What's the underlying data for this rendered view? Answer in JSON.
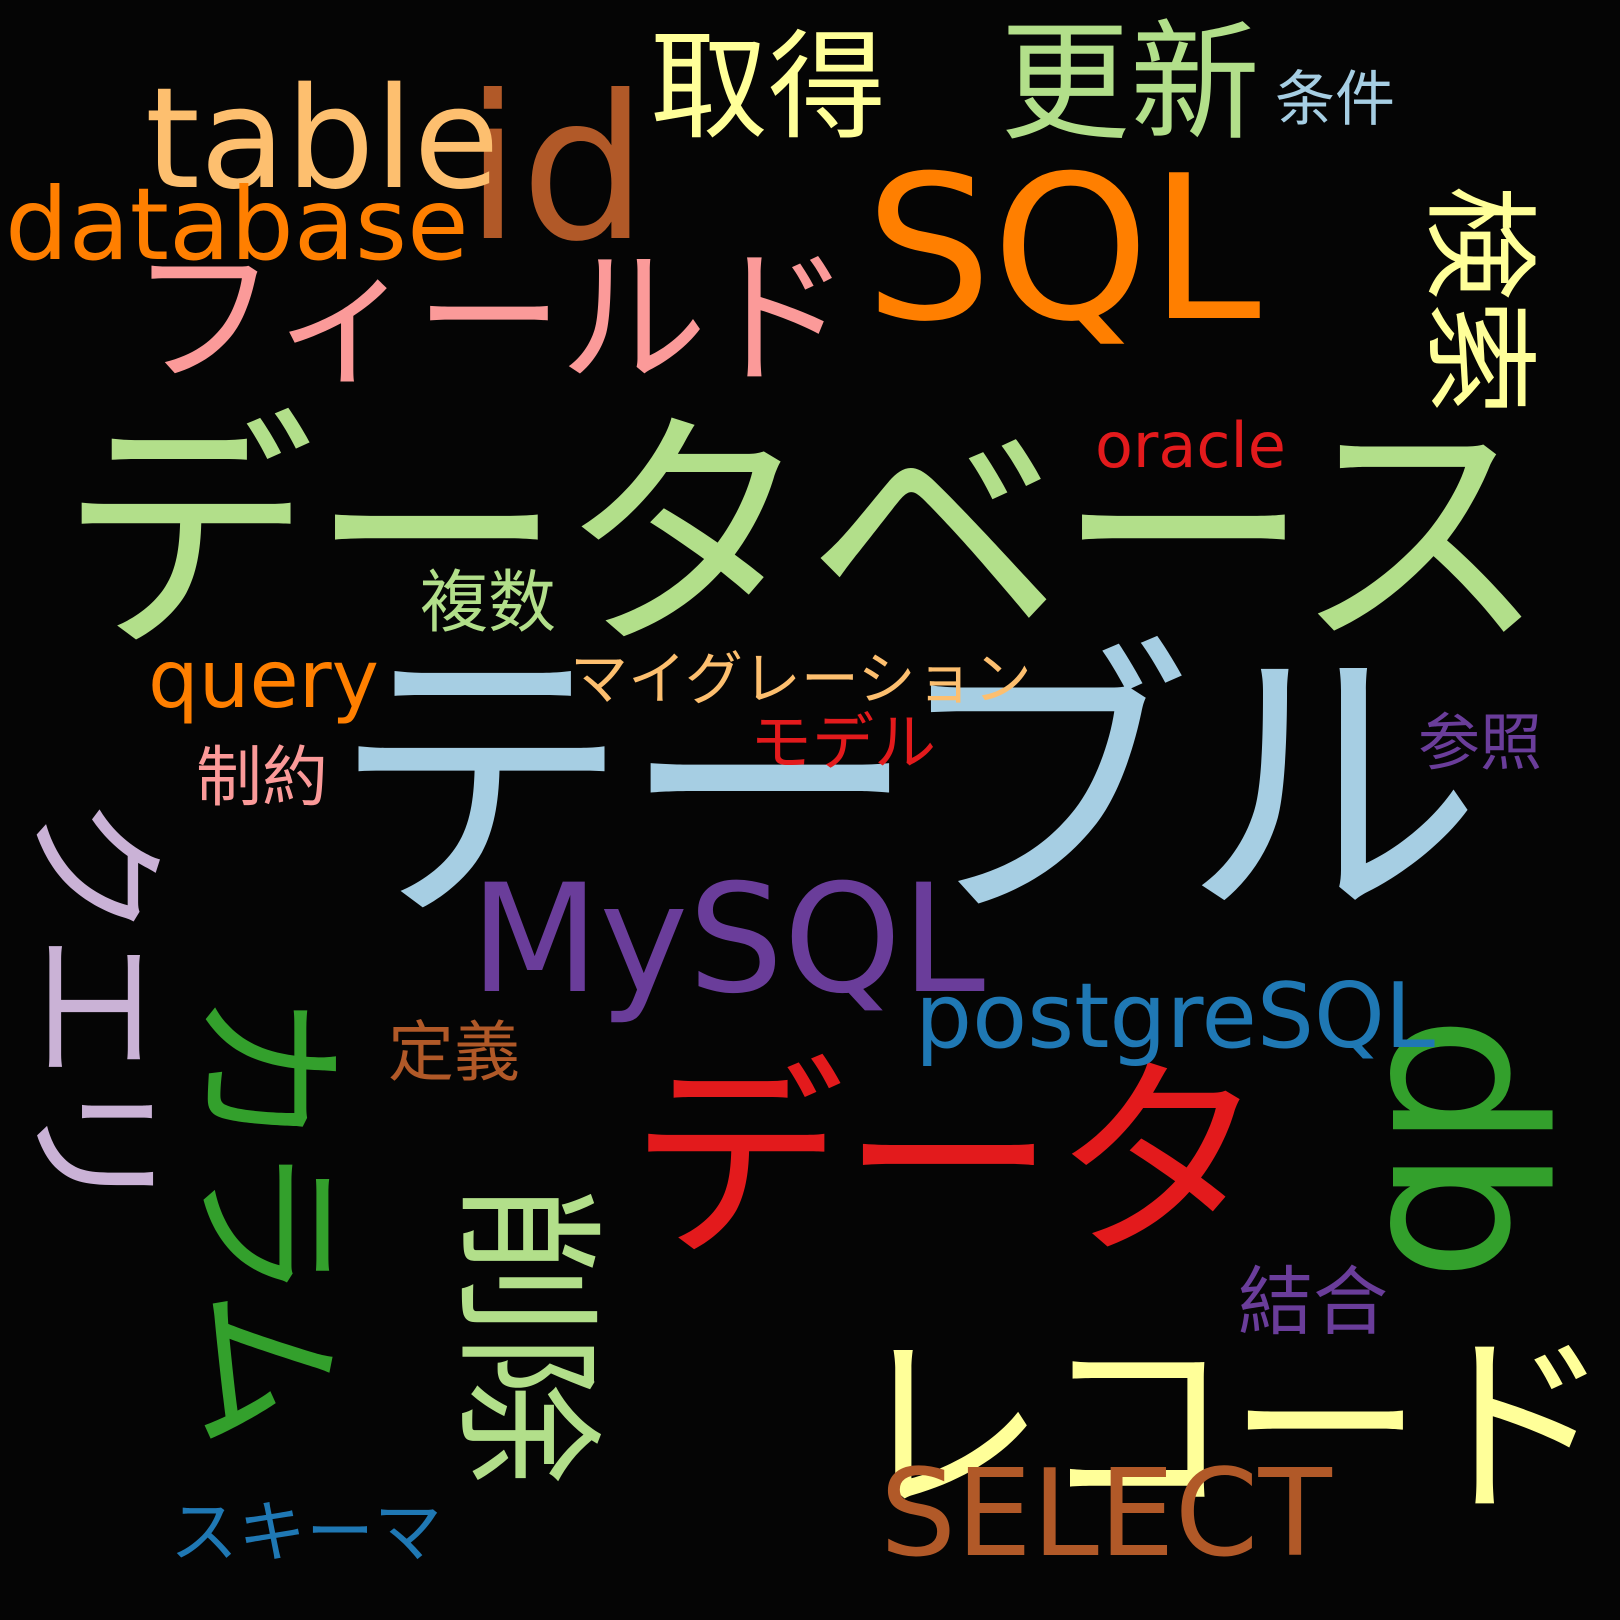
{
  "words": {
    "db_table": {
      "text": "データベース",
      "color": "#b2df8a"
    },
    "table": {
      "text": "テーブル",
      "color": "#a6cee3"
    },
    "sql": {
      "text": "SQL",
      "color": "#ff7f00"
    },
    "data": {
      "text": "データ",
      "color": "#e31a1c"
    },
    "record": {
      "text": "レコード",
      "color": "#ffff99"
    },
    "db": {
      "text": "db",
      "color": "#33a02c"
    },
    "field": {
      "text": "フィールド",
      "color": "#fb9a99"
    },
    "column": {
      "text": "カラム",
      "color": "#33a02c"
    },
    "query_jp": {
      "text": "クエリ",
      "color": "#cab2d6"
    },
    "delete": {
      "text": "削除",
      "color": "#b2df8a"
    },
    "search": {
      "text": "検索",
      "color": "#ffff99"
    },
    "id": {
      "text": "id",
      "color": "#b15928"
    },
    "mysql": {
      "text": "MySQL",
      "color": "#6a3d9a"
    },
    "table_en": {
      "text": "table",
      "color": "#fdbf6f"
    },
    "database": {
      "text": "database",
      "color": "#ff7f00"
    },
    "update": {
      "text": "更新",
      "color": "#b2df8a"
    },
    "get": {
      "text": "取得",
      "color": "#ffff99"
    },
    "postgresql": {
      "text": "postgreSQL",
      "color": "#1f78b4"
    },
    "select": {
      "text": "SELECT",
      "color": "#b15928"
    },
    "oracle": {
      "text": "oracle",
      "color": "#e31a1c"
    },
    "migration": {
      "text": "マイグレーション",
      "color": "#fdbf6f"
    },
    "query_en": {
      "text": "query",
      "color": "#ff7f00"
    },
    "multiple": {
      "text": "複数",
      "color": "#b2df8a"
    },
    "condition": {
      "text": "条件",
      "color": "#a6cee3"
    },
    "reference": {
      "text": "参照",
      "color": "#6a3d9a"
    },
    "model": {
      "text": "モデル",
      "color": "#e31a1c"
    },
    "constraint": {
      "text": "制約",
      "color": "#fb9a99"
    },
    "definition": {
      "text": "定義",
      "color": "#b15928"
    },
    "join": {
      "text": "結合",
      "color": "#6a3d9a"
    },
    "schema": {
      "text": "スキーマ",
      "color": "#1f78b4"
    }
  }
}
